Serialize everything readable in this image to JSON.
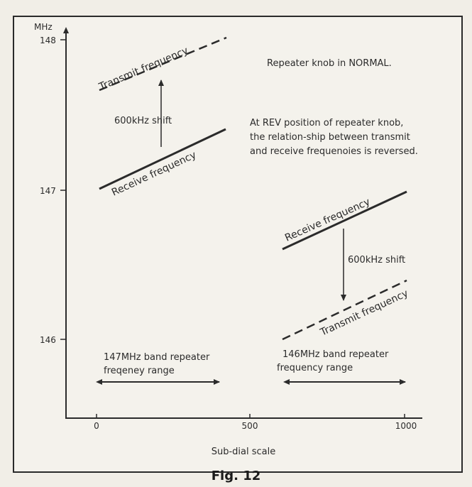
{
  "figure": {
    "caption": "Fig. 12",
    "y_unit": "MHz",
    "y_ticks": [
      "148",
      "147",
      "146"
    ],
    "x_ticks": [
      "0",
      "500",
      "1000"
    ],
    "x_label": "Sub-dial scale",
    "note_normal": "Repeater knob in NORMAL.",
    "note_rev": [
      "At REV position of repeater knob,",
      "the relation-ship between transmit",
      "and receive frequenoies is reversed."
    ]
  },
  "left_panel": {
    "transmit_label": "Transmit frequency",
    "receive_label": "Receive frequency",
    "shift_label": "600kHz shift",
    "range_label": [
      "147MHz band repeater",
      "freqeney range"
    ]
  },
  "right_panel": {
    "receive_label": "Receive frequency",
    "transmit_label": "Transmit frequency",
    "shift_label": "600kHz shift",
    "range_label": [
      "146MHz band repeater",
      "frequency range"
    ]
  },
  "colors": {
    "ink": "#2b2b2b",
    "paper": "#f4f2ec"
  }
}
